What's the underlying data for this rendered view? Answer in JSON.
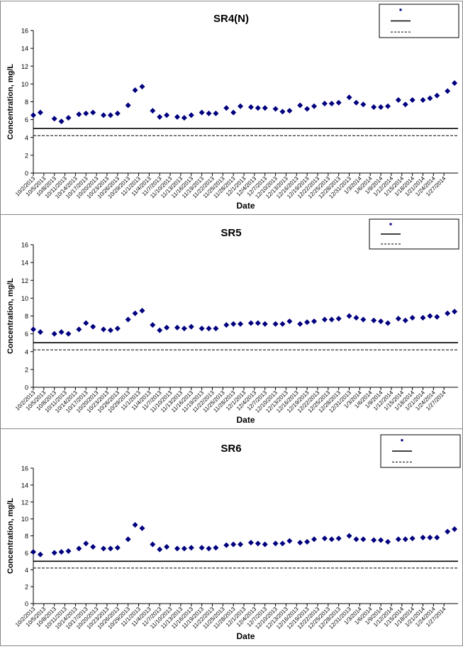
{
  "chart_data": [
    {
      "type": "scatter",
      "title": "SR4(N)",
      "xlabel": "Date",
      "ylabel": "Concentration, mg/L",
      "ylim": [
        0,
        16
      ],
      "yticks": [
        0,
        2,
        4,
        6,
        8,
        10,
        12,
        14,
        16
      ],
      "legend_position": "top-right",
      "x_tick_labels": [
        "10/2/2013",
        "10/5/2013",
        "10/8/2013",
        "10/11/2013",
        "10/14/2013",
        "10/17/2013",
        "10/20/2013",
        "10/23/2013",
        "10/26/2013",
        "10/29/2013",
        "11/1/2013",
        "11/4/2013",
        "11/7/2013",
        "11/10/2013",
        "11/13/2013",
        "11/16/2013",
        "11/19/2013",
        "11/22/2013",
        "11/25/2013",
        "11/28/2013",
        "12/1/2013",
        "12/4/2013",
        "12/7/2013",
        "12/10/2013",
        "12/13/2013",
        "12/16/2013",
        "12/19/2013",
        "12/22/2013",
        "12/25/2013",
        "12/28/2013",
        "12/31/2013",
        "1/3/2014",
        "1/6/2014",
        "1/9/2014",
        "1/12/2014",
        "1/15/2014",
        "1/18/2014",
        "1/21/2014",
        "1/24/2014",
        "1/27/2014"
      ],
      "x": [
        "10/2/2013",
        "10/4/2013",
        "10/8/2013",
        "10/10/2013",
        "10/12/2013",
        "10/15/2013",
        "10/17/2013",
        "10/19/2013",
        "10/22/2013",
        "10/24/2013",
        "10/26/2013",
        "10/29/2013",
        "10/31/2013",
        "11/2/2013",
        "11/5/2013",
        "11/7/2013",
        "11/9/2013",
        "11/12/2013",
        "11/14/2013",
        "11/16/2013",
        "11/19/2013",
        "11/21/2013",
        "11/23/2013",
        "11/26/2013",
        "11/28/2013",
        "11/30/2013",
        "12/3/2013",
        "12/5/2013",
        "12/7/2013",
        "12/10/2013",
        "12/12/2013",
        "12/14/2013",
        "12/17/2013",
        "12/19/2013",
        "12/21/2013",
        "12/24/2013",
        "12/26/2013",
        "12/28/2013",
        "12/31/2013",
        "1/2/2014",
        "1/4/2014",
        "1/7/2014",
        "1/9/2014",
        "1/11/2014",
        "1/14/2014",
        "1/16/2014",
        "1/18/2014",
        "1/21/2014",
        "1/23/2014",
        "1/25/2014",
        "1/28/2014",
        "1/30/2014"
      ],
      "series": [
        {
          "values": [
            6.5,
            6.8,
            6.1,
            5.8,
            6.2,
            6.6,
            6.7,
            6.8,
            6.5,
            6.5,
            6.7,
            7.6,
            9.3,
            9.7,
            7.0,
            6.3,
            6.5,
            6.3,
            6.2,
            6.5,
            6.8,
            6.7,
            6.7,
            7.3,
            6.8,
            7.5,
            7.4,
            7.3,
            7.3,
            7.2,
            6.9,
            7.0,
            7.6,
            7.2,
            7.5,
            7.8,
            7.8,
            7.9,
            8.5,
            7.9,
            7.7,
            7.4,
            7.4,
            7.5,
            8.2,
            7.7,
            8.2,
            8.2,
            8.4,
            8.7,
            9.2,
            10.1
          ],
          "color": "#00007f"
        },
        {
          "values": [
            5.0
          ],
          "style": "solid",
          "color": "#000000"
        },
        {
          "values": [
            4.2
          ],
          "style": "dashed",
          "color": "#000000"
        }
      ],
      "reference_lines": [
        {
          "y": 5.0,
          "style": "solid"
        },
        {
          "y": 4.2,
          "style": "dashed"
        }
      ]
    },
    {
      "type": "scatter",
      "title": "SR5",
      "xlabel": "Date",
      "ylabel": "Concentration, mg/L",
      "ylim": [
        0,
        16
      ],
      "yticks": [
        0,
        2,
        4,
        6,
        8,
        10,
        12,
        14,
        16
      ],
      "legend_position": "top-right",
      "x_tick_labels": [
        "10/2/2013",
        "10/5/2013",
        "10/8/2013",
        "10/11/2013",
        "10/14/2013",
        "10/17/2013",
        "10/20/2013",
        "10/23/2013",
        "10/26/2013",
        "10/29/2013",
        "11/1/2013",
        "11/4/2013",
        "11/7/2013",
        "11/10/2013",
        "11/13/2013",
        "11/16/2013",
        "11/19/2013",
        "11/22/2013",
        "11/25/2013",
        "11/28/2013",
        "12/1/2013",
        "12/4/2013",
        "12/7/2013",
        "12/10/2013",
        "12/13/2013",
        "12/16/2013",
        "12/19/2013",
        "12/22/2013",
        "12/25/2013",
        "12/28/2013",
        "12/31/2013",
        "1/3/2014",
        "1/6/2014",
        "1/9/2014",
        "1/12/2014",
        "1/15/2014",
        "1/18/2014",
        "1/21/2014",
        "1/24/2014",
        "1/27/2014"
      ],
      "x": [
        "10/2/2013",
        "10/4/2013",
        "10/8/2013",
        "10/10/2013",
        "10/12/2013",
        "10/15/2013",
        "10/17/2013",
        "10/19/2013",
        "10/22/2013",
        "10/24/2013",
        "10/26/2013",
        "10/29/2013",
        "10/31/2013",
        "11/2/2013",
        "11/5/2013",
        "11/7/2013",
        "11/9/2013",
        "11/12/2013",
        "11/14/2013",
        "11/16/2013",
        "11/19/2013",
        "11/21/2013",
        "11/23/2013",
        "11/26/2013",
        "11/28/2013",
        "11/30/2013",
        "12/3/2013",
        "12/5/2013",
        "12/7/2013",
        "12/10/2013",
        "12/12/2013",
        "12/14/2013",
        "12/17/2013",
        "12/19/2013",
        "12/21/2013",
        "12/24/2013",
        "12/26/2013",
        "12/28/2013",
        "12/31/2013",
        "1/2/2014",
        "1/4/2014",
        "1/7/2014",
        "1/9/2014",
        "1/11/2014",
        "1/14/2014",
        "1/16/2014",
        "1/18/2014",
        "1/21/2014",
        "1/23/2014",
        "1/25/2014",
        "1/28/2014",
        "1/30/2014"
      ],
      "series": [
        {
          "values": [
            6.5,
            6.2,
            6.0,
            6.2,
            6.0,
            6.5,
            7.2,
            6.8,
            6.5,
            6.4,
            6.6,
            7.6,
            8.3,
            8.6,
            7.0,
            6.4,
            6.7,
            6.7,
            6.6,
            6.8,
            6.6,
            6.6,
            6.6,
            7.0,
            7.1,
            7.1,
            7.2,
            7.2,
            7.1,
            7.1,
            7.1,
            7.4,
            7.1,
            7.3,
            7.4,
            7.6,
            7.6,
            7.7,
            8.0,
            7.8,
            7.6,
            7.5,
            7.4,
            7.2,
            7.7,
            7.5,
            7.8,
            7.8,
            8.0,
            7.9,
            8.3,
            8.5
          ],
          "color": "#00007f"
        },
        {
          "values": [
            5.0
          ],
          "style": "solid",
          "color": "#000000"
        },
        {
          "values": [
            4.2
          ],
          "style": "dashed",
          "color": "#000000"
        }
      ],
      "reference_lines": [
        {
          "y": 5.0,
          "style": "solid"
        },
        {
          "y": 4.2,
          "style": "dashed"
        }
      ]
    },
    {
      "type": "scatter",
      "title": "SR6",
      "xlabel": "Date",
      "ylabel": "Concentration, mg/L",
      "ylim": [
        0,
        16
      ],
      "yticks": [
        0,
        2,
        4,
        6,
        8,
        10,
        12,
        14,
        16
      ],
      "legend_position": "top-right",
      "x_tick_labels": [
        "10/2/2013",
        "10/5/2013",
        "10/8/2013",
        "10/11/2013",
        "10/14/2013",
        "10/17/2013",
        "10/20/2013",
        "10/23/2013",
        "10/26/2013",
        "10/29/2013",
        "11/1/2013",
        "11/4/2013",
        "11/7/2013",
        "11/10/2013",
        "11/13/2013",
        "11/16/2013",
        "11/19/2013",
        "11/22/2013",
        "11/25/2013",
        "11/28/2013",
        "12/1/2013",
        "12/4/2013",
        "12/7/2013",
        "12/10/2013",
        "12/13/2013",
        "12/16/2013",
        "12/19/2013",
        "12/22/2013",
        "12/25/2013",
        "12/28/2013",
        "12/31/2013",
        "1/3/2014",
        "1/6/2014",
        "1/9/2014",
        "1/12/2014",
        "1/15/2014",
        "1/18/2014",
        "1/21/2014",
        "1/24/2014",
        "1/27/2014"
      ],
      "x": [
        "10/2/2013",
        "10/4/2013",
        "10/8/2013",
        "10/10/2013",
        "10/12/2013",
        "10/15/2013",
        "10/17/2013",
        "10/19/2013",
        "10/22/2013",
        "10/24/2013",
        "10/26/2013",
        "10/29/2013",
        "10/31/2013",
        "11/2/2013",
        "11/5/2013",
        "11/7/2013",
        "11/9/2013",
        "11/12/2013",
        "11/14/2013",
        "11/16/2013",
        "11/19/2013",
        "11/21/2013",
        "11/23/2013",
        "11/26/2013",
        "11/28/2013",
        "11/30/2013",
        "12/3/2013",
        "12/5/2013",
        "12/7/2013",
        "12/10/2013",
        "12/12/2013",
        "12/14/2013",
        "12/17/2013",
        "12/19/2013",
        "12/21/2013",
        "12/24/2013",
        "12/26/2013",
        "12/28/2013",
        "12/31/2013",
        "1/2/2014",
        "1/4/2014",
        "1/7/2014",
        "1/9/2014",
        "1/11/2014",
        "1/14/2014",
        "1/16/2014",
        "1/18/2014",
        "1/21/2014",
        "1/23/2014",
        "1/25/2014",
        "1/28/2014",
        "1/30/2014"
      ],
      "series": [
        {
          "values": [
            6.1,
            5.8,
            6.0,
            6.1,
            6.2,
            6.5,
            7.1,
            6.7,
            6.5,
            6.5,
            6.6,
            7.6,
            9.3,
            8.9,
            7.0,
            6.4,
            6.7,
            6.5,
            6.5,
            6.6,
            6.6,
            6.5,
            6.6,
            6.9,
            7.0,
            7.0,
            7.2,
            7.1,
            7.0,
            7.1,
            7.1,
            7.4,
            7.2,
            7.3,
            7.6,
            7.7,
            7.6,
            7.7,
            8.0,
            7.6,
            7.6,
            7.5,
            7.5,
            7.3,
            7.6,
            7.6,
            7.7,
            7.8,
            7.8,
            7.8,
            8.5,
            8.8
          ],
          "color": "#00007f"
        },
        {
          "values": [
            5.0
          ],
          "style": "solid",
          "color": "#000000"
        },
        {
          "values": [
            4.2
          ],
          "style": "dashed",
          "color": "#000000"
        }
      ],
      "reference_lines": [
        {
          "y": 5.0,
          "style": "solid"
        },
        {
          "y": 4.2,
          "style": "dashed"
        }
      ]
    }
  ]
}
